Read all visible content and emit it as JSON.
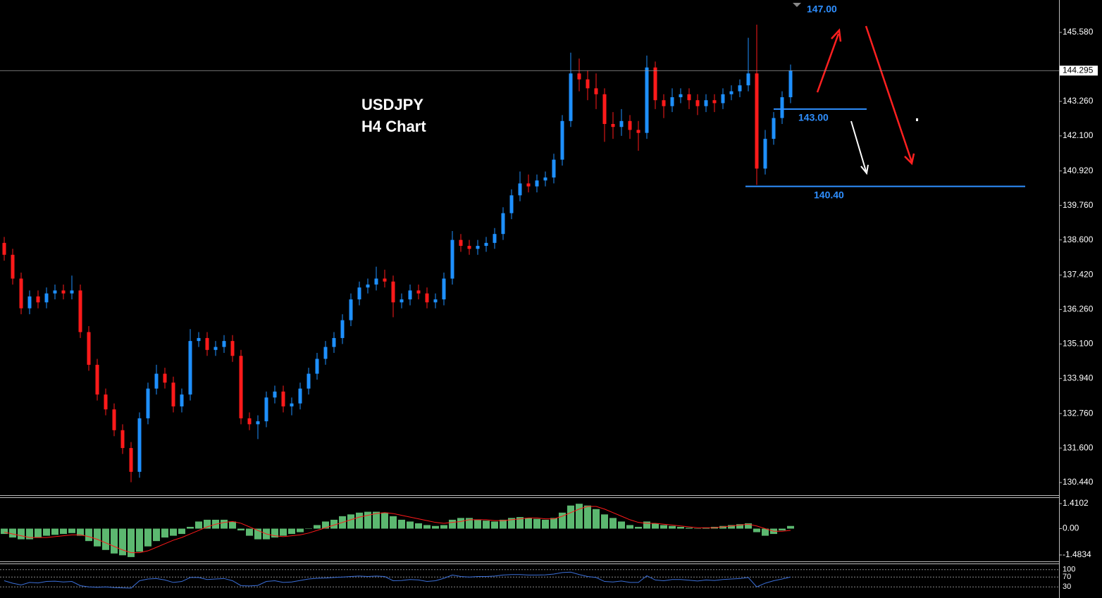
{
  "chart_data": {
    "type": "candlestick",
    "title": "USDJPY",
    "subtitle": "H4 Chart",
    "bull_color": "#1e90ff",
    "bear_color": "#ff1a1a",
    "ylim": [
      130.015,
      146.67
    ],
    "yticks": [
      {
        "value": 145.58,
        "label": "145.580"
      },
      {
        "value": 143.26,
        "label": "143.260"
      },
      {
        "value": 142.1,
        "label": "142.100"
      },
      {
        "value": 140.92,
        "label": "140.920"
      },
      {
        "value": 139.76,
        "label": "139.760"
      },
      {
        "value": 138.6,
        "label": "138.600"
      },
      {
        "value": 137.42,
        "label": "137.420"
      },
      {
        "value": 136.26,
        "label": "136.260"
      },
      {
        "value": 135.1,
        "label": "135.100"
      },
      {
        "value": 133.94,
        "label": "133.940"
      },
      {
        "value": 132.76,
        "label": "132.760"
      },
      {
        "value": 131.6,
        "label": "131.600"
      },
      {
        "value": 130.44,
        "label": "130.440"
      }
    ],
    "current_price": 144.295,
    "target_label": "147.00",
    "levels": [
      {
        "value": 143.0,
        "label": "143.00"
      },
      {
        "value": 140.4,
        "label": "140.40"
      }
    ],
    "candles": [
      [
        138.5,
        138.7,
        137.9,
        138.1
      ],
      [
        138.1,
        138.3,
        137.1,
        137.3
      ],
      [
        137.3,
        137.5,
        136.1,
        136.3
      ],
      [
        136.3,
        136.9,
        136.1,
        136.7
      ],
      [
        136.7,
        136.9,
        136.3,
        136.5
      ],
      [
        136.5,
        137.0,
        136.3,
        136.8
      ],
      [
        136.8,
        137.1,
        136.6,
        136.9
      ],
      [
        136.9,
        137.1,
        136.6,
        136.8
      ],
      [
        136.8,
        137.4,
        136.6,
        136.9
      ],
      [
        136.9,
        137.1,
        135.3,
        135.5
      ],
      [
        135.5,
        135.7,
        134.2,
        134.4
      ],
      [
        134.4,
        134.6,
        133.2,
        133.4
      ],
      [
        133.4,
        133.6,
        132.7,
        132.9
      ],
      [
        132.9,
        133.1,
        132.0,
        132.2
      ],
      [
        132.2,
        132.4,
        131.4,
        131.6
      ],
      [
        131.6,
        131.8,
        130.45,
        130.8
      ],
      [
        130.8,
        132.8,
        130.6,
        132.6
      ],
      [
        132.6,
        133.8,
        132.4,
        133.6
      ],
      [
        133.6,
        134.4,
        133.4,
        134.1
      ],
      [
        134.1,
        134.3,
        133.6,
        133.8
      ],
      [
        133.8,
        134.0,
        132.8,
        133.0
      ],
      [
        133.0,
        133.6,
        132.8,
        133.4
      ],
      [
        133.4,
        135.6,
        133.2,
        135.2
      ],
      [
        135.2,
        135.5,
        135.0,
        135.3
      ],
      [
        135.3,
        135.5,
        134.7,
        134.9
      ],
      [
        134.9,
        135.2,
        134.7,
        135.0
      ],
      [
        135.0,
        135.4,
        134.8,
        135.2
      ],
      [
        135.2,
        135.4,
        134.5,
        134.7
      ],
      [
        134.7,
        134.9,
        132.4,
        132.6
      ],
      [
        132.6,
        132.8,
        132.2,
        132.4
      ],
      [
        132.4,
        132.7,
        131.9,
        132.5
      ],
      [
        132.5,
        133.5,
        132.3,
        133.3
      ],
      [
        133.3,
        133.7,
        133.1,
        133.5
      ],
      [
        133.5,
        133.7,
        132.8,
        133.0
      ],
      [
        133.0,
        133.3,
        132.7,
        133.1
      ],
      [
        133.1,
        133.8,
        132.9,
        133.6
      ],
      [
        133.6,
        134.3,
        133.4,
        134.1
      ],
      [
        134.1,
        134.8,
        133.9,
        134.6
      ],
      [
        134.6,
        135.2,
        134.4,
        135.0
      ],
      [
        135.0,
        135.5,
        134.8,
        135.3
      ],
      [
        135.3,
        136.1,
        135.1,
        135.9
      ],
      [
        135.9,
        136.8,
        135.7,
        136.6
      ],
      [
        136.6,
        137.2,
        136.4,
        137.0
      ],
      [
        137.0,
        137.3,
        136.8,
        137.1
      ],
      [
        137.1,
        137.7,
        136.9,
        137.3
      ],
      [
        137.3,
        137.6,
        137.0,
        137.2
      ],
      [
        137.2,
        137.4,
        136.0,
        136.5
      ],
      [
        136.5,
        136.8,
        136.3,
        136.6
      ],
      [
        136.6,
        137.1,
        136.4,
        136.9
      ],
      [
        136.9,
        137.1,
        136.6,
        136.8
      ],
      [
        136.8,
        137.0,
        136.3,
        136.5
      ],
      [
        136.5,
        136.8,
        136.3,
        136.6
      ],
      [
        136.6,
        137.5,
        136.4,
        137.3
      ],
      [
        137.3,
        138.9,
        137.1,
        138.6
      ],
      [
        138.6,
        138.8,
        138.2,
        138.4
      ],
      [
        138.4,
        138.6,
        138.1,
        138.3
      ],
      [
        138.3,
        138.6,
        138.1,
        138.4
      ],
      [
        138.4,
        138.7,
        138.2,
        138.5
      ],
      [
        138.5,
        139.0,
        138.3,
        138.8
      ],
      [
        138.8,
        139.7,
        138.6,
        139.5
      ],
      [
        139.5,
        140.3,
        139.3,
        140.1
      ],
      [
        140.1,
        140.9,
        139.9,
        140.5
      ],
      [
        140.5,
        140.8,
        140.2,
        140.4
      ],
      [
        140.4,
        140.8,
        140.2,
        140.6
      ],
      [
        140.6,
        140.9,
        140.4,
        140.7
      ],
      [
        140.7,
        141.5,
        140.5,
        141.3
      ],
      [
        141.3,
        142.8,
        141.1,
        142.6
      ],
      [
        142.6,
        144.9,
        142.4,
        144.2
      ],
      [
        144.2,
        144.7,
        143.6,
        144.0
      ],
      [
        144.0,
        144.3,
        143.3,
        143.7
      ],
      [
        143.7,
        144.2,
        143.0,
        143.5
      ],
      [
        143.5,
        143.7,
        141.9,
        142.5
      ],
      [
        142.5,
        142.9,
        142.0,
        142.4
      ],
      [
        142.4,
        143.0,
        142.1,
        142.6
      ],
      [
        142.6,
        142.8,
        142.0,
        142.3
      ],
      [
        142.3,
        142.6,
        141.6,
        142.2
      ],
      [
        142.2,
        144.8,
        142.0,
        144.4
      ],
      [
        144.4,
        144.6,
        143.0,
        143.3
      ],
      [
        143.3,
        143.5,
        142.7,
        143.1
      ],
      [
        143.1,
        143.7,
        142.9,
        143.4
      ],
      [
        143.4,
        143.7,
        143.2,
        143.5
      ],
      [
        143.5,
        143.7,
        143.0,
        143.3
      ],
      [
        143.3,
        143.5,
        142.8,
        143.1
      ],
      [
        143.1,
        143.5,
        142.9,
        143.3
      ],
      [
        143.3,
        143.5,
        142.9,
        143.2
      ],
      [
        143.2,
        143.7,
        143.0,
        143.5
      ],
      [
        143.5,
        143.8,
        143.3,
        143.6
      ],
      [
        143.6,
        144.0,
        143.4,
        143.8
      ],
      [
        143.8,
        145.4,
        143.6,
        144.2
      ],
      [
        144.2,
        145.84,
        140.45,
        141.0
      ],
      [
        141.0,
        142.3,
        140.8,
        142.0
      ],
      [
        142.0,
        142.9,
        141.8,
        142.7
      ],
      [
        142.7,
        143.6,
        142.5,
        143.4
      ],
      [
        143.4,
        144.5,
        143.2,
        144.29
      ]
    ],
    "macd": {
      "ylim": [
        -1.843,
        1.725
      ],
      "yticks": [
        {
          "value": 1.4102,
          "label": "1.4102"
        },
        {
          "value": 0,
          "label": "0.00"
        },
        {
          "value": -1.4834,
          "label": "-1.4834"
        }
      ],
      "hist_color": "#5cb870",
      "signal_color": "#ff1a1a",
      "histogram": [
        -0.3,
        -0.5,
        -0.6,
        -0.6,
        -0.5,
        -0.4,
        -0.35,
        -0.3,
        -0.25,
        -0.4,
        -0.7,
        -1.0,
        -1.2,
        -1.4,
        -1.5,
        -1.6,
        -1.3,
        -1.0,
        -0.7,
        -0.5,
        -0.4,
        -0.3,
        0.1,
        0.4,
        0.5,
        0.5,
        0.5,
        0.4,
        -0.1,
        -0.4,
        -0.6,
        -0.6,
        -0.5,
        -0.4,
        -0.3,
        -0.2,
        0,
        0.2,
        0.4,
        0.5,
        0.7,
        0.8,
        0.9,
        0.95,
        0.95,
        0.9,
        0.7,
        0.5,
        0.4,
        0.3,
        0.2,
        0.15,
        0.2,
        0.5,
        0.6,
        0.6,
        0.5,
        0.45,
        0.4,
        0.5,
        0.6,
        0.65,
        0.6,
        0.55,
        0.5,
        0.6,
        0.9,
        1.3,
        1.4,
        1.3,
        1.1,
        0.8,
        0.6,
        0.4,
        0.2,
        0.1,
        0.4,
        0.3,
        0.2,
        0.15,
        0.1,
        0.05,
        0,
        0.05,
        0.1,
        0.15,
        0.2,
        0.25,
        0.3,
        -0.2,
        -0.4,
        -0.3,
        -0.1,
        0.15
      ],
      "signal": [
        -0.2,
        -0.3,
        -0.4,
        -0.5,
        -0.5,
        -0.5,
        -0.45,
        -0.4,
        -0.35,
        -0.35,
        -0.45,
        -0.6,
        -0.8,
        -1.0,
        -1.2,
        -1.35,
        -1.35,
        -1.25,
        -1.05,
        -0.85,
        -0.65,
        -0.5,
        -0.3,
        -0.1,
        0.1,
        0.25,
        0.35,
        0.4,
        0.3,
        0.1,
        -0.1,
        -0.3,
        -0.4,
        -0.45,
        -0.4,
        -0.35,
        -0.25,
        -0.1,
        0.05,
        0.2,
        0.35,
        0.5,
        0.65,
        0.75,
        0.85,
        0.9,
        0.85,
        0.75,
        0.65,
        0.55,
        0.45,
        0.35,
        0.3,
        0.35,
        0.4,
        0.5,
        0.5,
        0.5,
        0.45,
        0.45,
        0.5,
        0.55,
        0.6,
        0.6,
        0.55,
        0.55,
        0.7,
        0.9,
        1.1,
        1.25,
        1.25,
        1.1,
        0.9,
        0.7,
        0.5,
        0.35,
        0.3,
        0.3,
        0.25,
        0.2,
        0.15,
        0.1,
        0.05,
        0.05,
        0.05,
        0.1,
        0.15,
        0.2,
        0.25,
        0.15,
        0,
        -0.15,
        -0.15,
        -0.1
      ]
    },
    "rsi": {
      "ylim": [
        -15,
        122
      ],
      "yticks": [
        100,
        70,
        30
      ],
      "color": "#3b6fd9",
      "values": [
        55,
        45,
        38,
        48,
        46,
        52,
        53,
        50,
        52,
        35,
        30,
        28,
        30,
        27,
        26,
        25,
        55,
        62,
        64,
        58,
        48,
        52,
        68,
        68,
        60,
        62,
        64,
        55,
        35,
        34,
        36,
        52,
        55,
        48,
        50,
        56,
        62,
        65,
        66,
        68,
        70,
        72,
        74,
        72,
        74,
        72,
        55,
        56,
        60,
        58,
        52,
        55,
        65,
        78,
        72,
        70,
        72,
        72,
        74,
        78,
        80,
        80,
        78,
        78,
        79,
        82,
        88,
        90,
        80,
        72,
        68,
        52,
        50,
        54,
        48,
        48,
        75,
        58,
        55,
        60,
        60,
        57,
        54,
        58,
        56,
        60,
        62,
        64,
        68,
        30,
        45,
        55,
        62,
        70
      ]
    }
  }
}
